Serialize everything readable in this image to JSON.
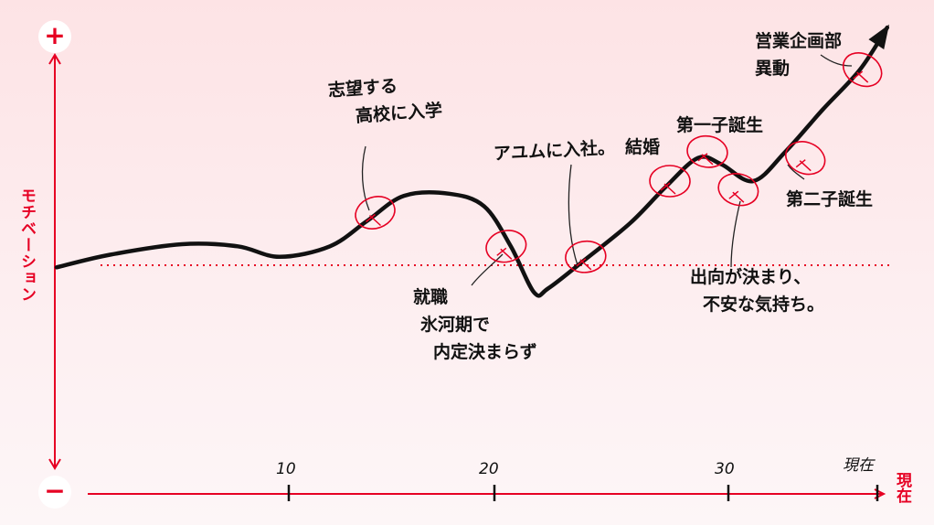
{
  "axis": {
    "plus_label": "+",
    "minus_label": "−",
    "y_label": "モチベーション",
    "x_end_label": "現在"
  },
  "colors": {
    "accent": "#e60023",
    "line": "#111111",
    "background": "#fde6e8"
  },
  "chart_data": {
    "type": "line",
    "xlabel": "",
    "ylabel": "モチベーション",
    "x_ticks": [
      {
        "age": 10,
        "label": "10"
      },
      {
        "age": 20,
        "label": "20"
      },
      {
        "age": 30,
        "label": "30"
      },
      {
        "age": 36,
        "label": "現在"
      }
    ],
    "xlim": [
      0,
      36
    ],
    "ylim": [
      -108,
      108
    ],
    "baseline": 0,
    "baseline_style": "dotted",
    "grid": false,
    "series": [
      {
        "points": [
          [
            0,
            -1
          ],
          [
            2.3,
            5
          ],
          [
            5.4,
            10
          ],
          [
            7.8,
            9
          ],
          [
            9.6,
            4
          ],
          [
            12.0,
            9
          ],
          [
            13.8,
            21
          ],
          [
            15.6,
            33
          ],
          [
            17.8,
            34
          ],
          [
            19.5,
            28
          ],
          [
            20.7,
            9
          ],
          [
            21.7,
            -13
          ],
          [
            22.3,
            -11
          ],
          [
            23.8,
            2
          ],
          [
            25.8,
            20
          ],
          [
            27.3,
            37
          ],
          [
            28.7,
            51
          ],
          [
            29.7,
            48
          ],
          [
            31.0,
            40
          ],
          [
            32.3,
            54
          ],
          [
            33.8,
            74
          ],
          [
            35.3,
            93
          ],
          [
            36.4,
            113
          ]
        ]
      }
    ],
    "events": [
      {
        "age": 14.2,
        "value": 25,
        "lines": [
          "志望する",
          "高校に入学"
        ]
      },
      {
        "age": 20.5,
        "value": 9,
        "lines": [
          "就職",
          "氷河期で",
          "内定決まらず"
        ]
      },
      {
        "age": 23.9,
        "value": 4,
        "lines": [
          "アユムに入社。"
        ]
      },
      {
        "age": 27.5,
        "value": 40,
        "lines": [
          "結婚"
        ]
      },
      {
        "age": 29.1,
        "value": 54,
        "lines": [
          "第一子誕生"
        ]
      },
      {
        "age": 30.4,
        "value": 36,
        "lines": [
          "出向が決まり、",
          "不安な気持ち。"
        ]
      },
      {
        "age": 33.1,
        "value": 51,
        "lines": [
          "第二子誕生"
        ]
      },
      {
        "age": 35.4,
        "value": 93,
        "lines": [
          "営業企画部",
          "異動"
        ]
      }
    ]
  }
}
